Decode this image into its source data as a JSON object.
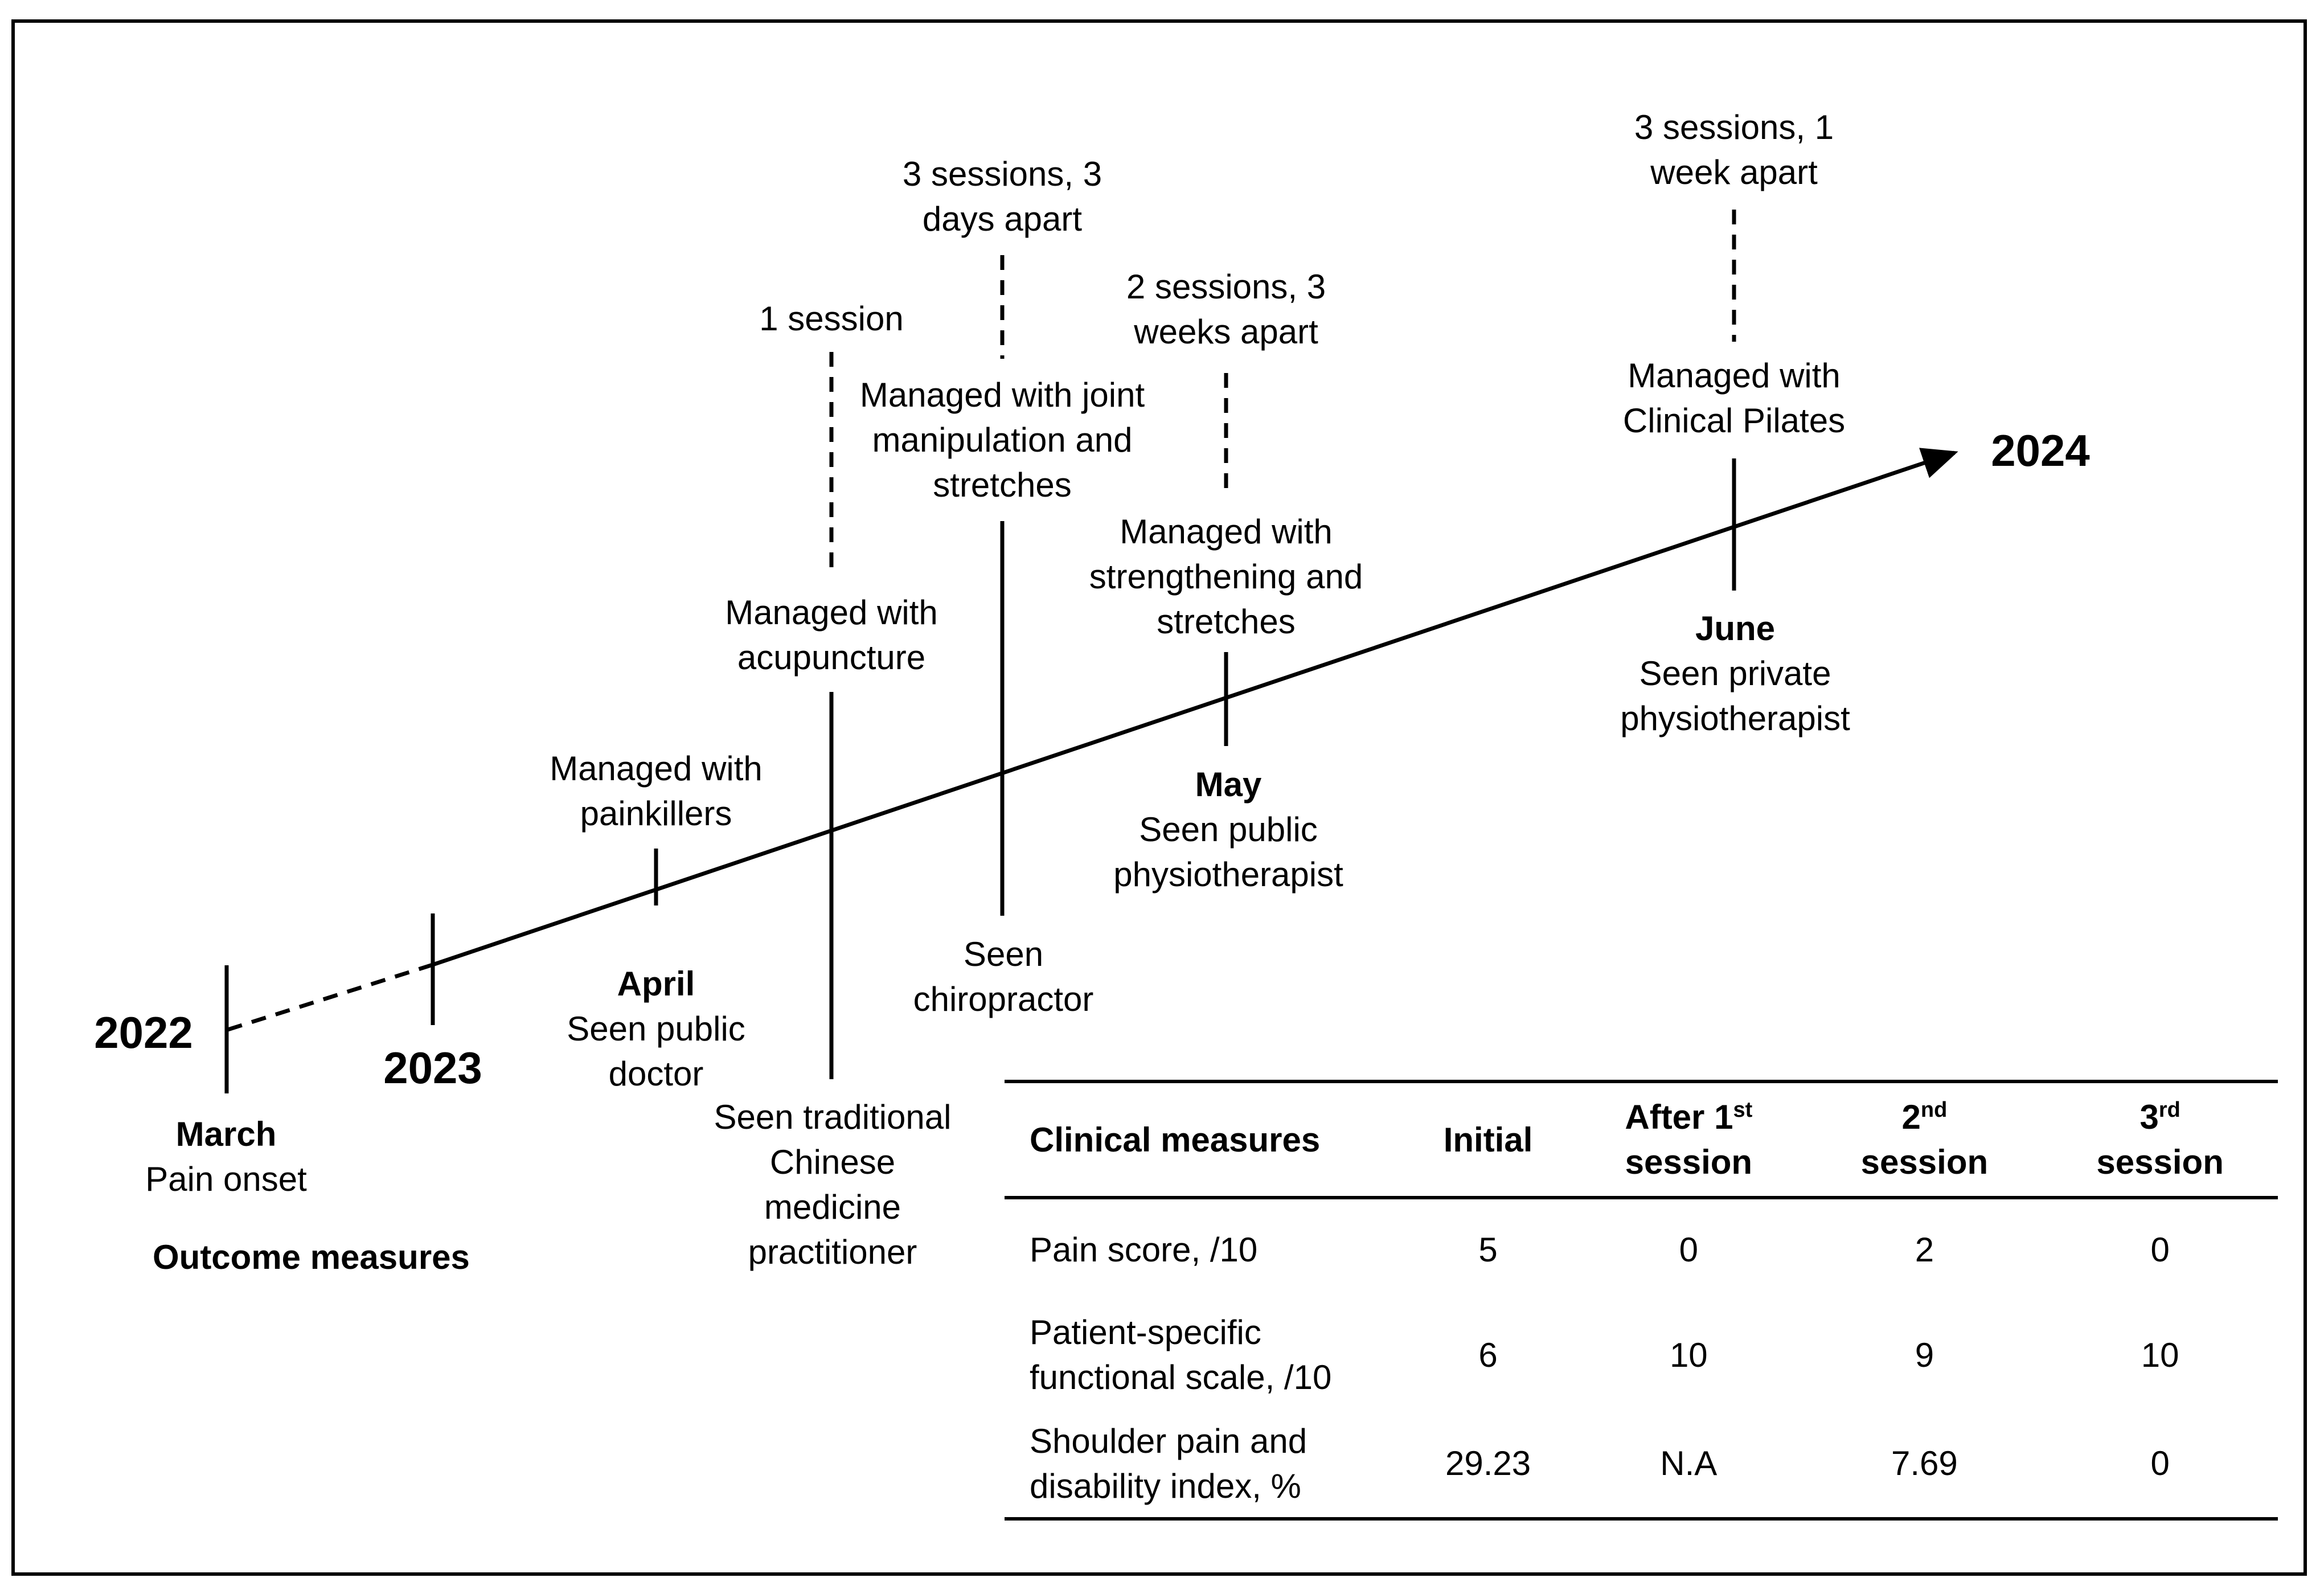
{
  "years": {
    "y2022": "2022",
    "y2023": "2023",
    "y2024": "2024"
  },
  "events": {
    "march": {
      "month": "March",
      "line1": "Pain onset"
    },
    "april": {
      "month": "April",
      "seen_line1": "Seen public",
      "seen_line2": "doctor",
      "managed_line1": "Managed with",
      "managed_line2": "painkillers"
    },
    "tcm": {
      "seen_line1": "Seen traditional",
      "seen_line2": "Chinese",
      "seen_line3": "medicine",
      "seen_line4": "practitioner",
      "managed_line1": "Managed with",
      "managed_line2": "acupuncture",
      "sessions_line1": "1 session"
    },
    "chiro": {
      "seen_line1": "Seen",
      "seen_line2": "chiropractor",
      "managed_line1": "Managed with joint",
      "managed_line2": "manipulation and",
      "managed_line3": "stretches",
      "sessions_line1": "3 sessions, 3",
      "sessions_line2": "days apart"
    },
    "may": {
      "month": "May",
      "seen_line1": "Seen public",
      "seen_line2": "physiotherapist",
      "managed_line1": "Managed with",
      "managed_line2": "strengthening and",
      "managed_line3": "stretches",
      "sessions_line1": "2 sessions, 3",
      "sessions_line2": "weeks apart"
    },
    "june": {
      "month": "June",
      "seen_line1": "Seen private",
      "seen_line2": "physiotherapist",
      "managed_line1": "Managed with",
      "managed_line2": "Clinical Pilates",
      "sessions_line1": "3 sessions, 1",
      "sessions_line2": "week apart"
    }
  },
  "outcome_title": "Outcome measures",
  "table": {
    "header": {
      "measure": "Clinical measures",
      "initial": "Initial",
      "after1_a": "After 1",
      "after1_sup": "st",
      "after1_b": "session",
      "s2_num": "2",
      "s2_sup": "nd",
      "s2_b": "session",
      "s3_num": "3",
      "s3_sup": "rd",
      "s3_b": "session"
    },
    "rows": [
      {
        "label1": "Pain score, /10",
        "label2": "",
        "initial": "5",
        "after1": "0",
        "s2": "2",
        "s3": "0"
      },
      {
        "label1": "Patient-specific",
        "label2": "functional scale, /10",
        "initial": "6",
        "after1": "10",
        "s2": "9",
        "s3": "10"
      },
      {
        "label1": "Shoulder pain and",
        "label2": "disability index, %",
        "initial": "29.23",
        "after1": "N.A",
        "s2": "7.69",
        "s3": "0"
      }
    ]
  }
}
